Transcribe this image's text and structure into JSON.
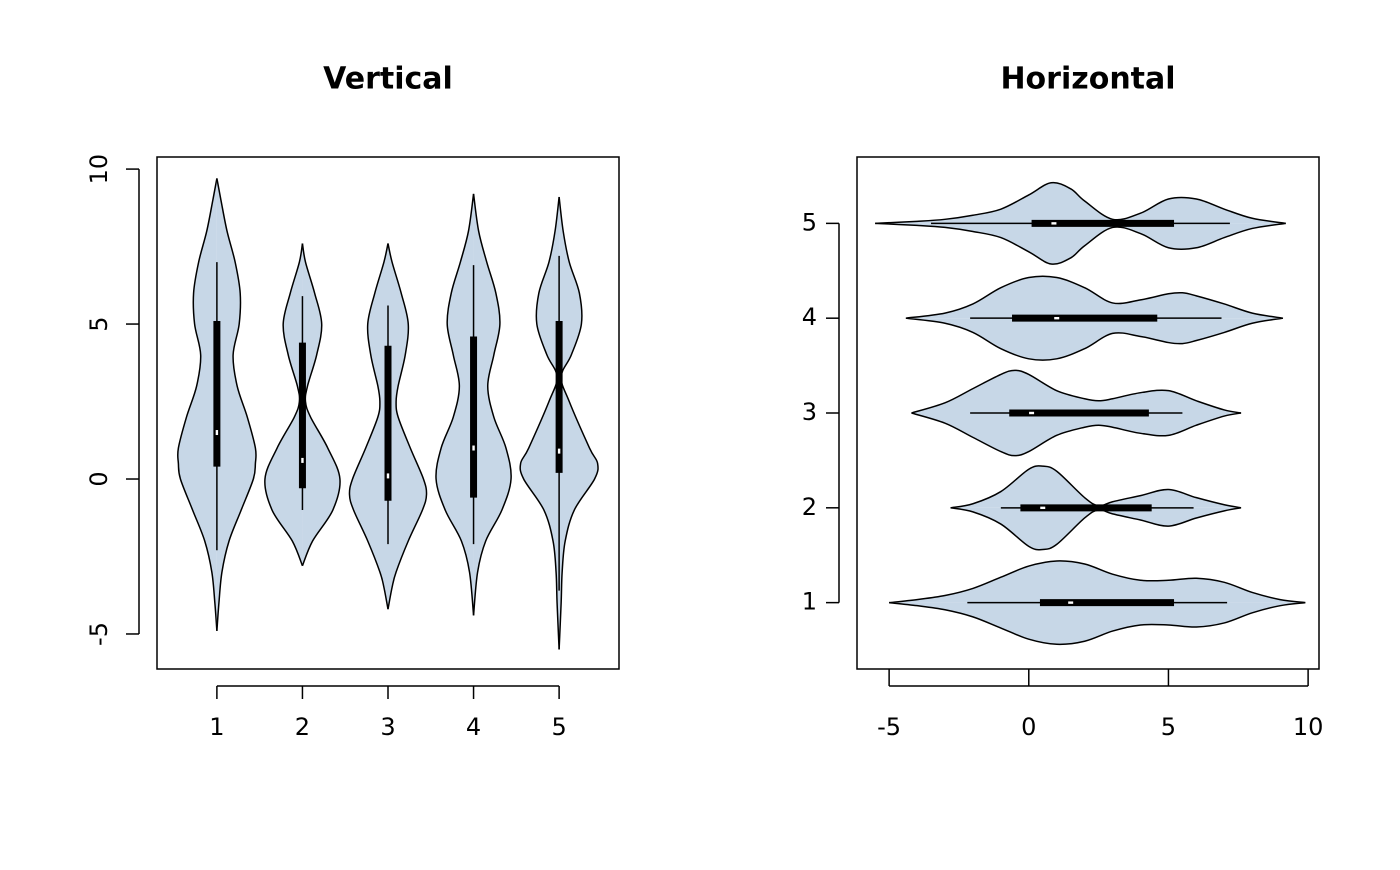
{
  "chart_data": [
    {
      "type": "violin",
      "horizontal": false,
      "title": "Vertical",
      "categories": [
        "1",
        "2",
        "3",
        "4",
        "5"
      ],
      "ylim": [
        -6.13,
        10.39
      ],
      "yticks": [
        -5,
        0,
        5,
        10
      ],
      "color": "#c7d7e7",
      "violins": [
        {
          "whisker_low": -2.3,
          "q1": 0.4,
          "median": 1.5,
          "q3": 5.1,
          "whisker_high": 7.0,
          "density_at": [
            -4.9,
            -4,
            -3,
            -2,
            -1,
            0,
            0.5,
            1,
            2,
            3,
            4,
            5,
            6,
            7,
            8,
            9,
            9.7
          ],
          "density": [
            0,
            2,
            5,
            12,
            24,
            36,
            38,
            38,
            30,
            20,
            16,
            22,
            23,
            18,
            10,
            4,
            0
          ]
        },
        {
          "whisker_low": -1.0,
          "q1": -0.3,
          "median": 0.6,
          "q3": 4.4,
          "whisker_high": 5.9,
          "density_at": [
            -2.8,
            -2,
            -1,
            0,
            1,
            2,
            2.5,
            3,
            4,
            5,
            6,
            7,
            7.6
          ],
          "density": [
            0,
            10,
            30,
            37,
            25,
            8,
            3,
            5,
            14,
            19,
            12,
            3,
            0
          ]
        },
        {
          "whisker_low": -2.1,
          "q1": -0.7,
          "median": 0.1,
          "q3": 4.3,
          "whisker_high": 5.6,
          "density_at": [
            -4.2,
            -3.5,
            -3,
            -2,
            -1,
            -0.5,
            0,
            1,
            2,
            2.5,
            3,
            4,
            5,
            6,
            7,
            7.6
          ],
          "density": [
            0,
            4,
            8,
            20,
            34,
            38,
            35,
            22,
            10,
            8,
            10,
            17,
            20,
            13,
            4,
            0
          ]
        },
        {
          "whisker_low": -2.1,
          "q1": -0.6,
          "median": 1.0,
          "q3": 4.6,
          "whisker_high": 6.9,
          "density_at": [
            -4.4,
            -3,
            -2,
            -1,
            0,
            1,
            2,
            3,
            4,
            5,
            6,
            7,
            8,
            9.2
          ],
          "density": [
            0,
            4,
            12,
            28,
            37,
            32,
            20,
            14,
            20,
            26,
            22,
            13,
            5,
            0
          ]
        },
        {
          "whisker_low": -3.6,
          "q1": 0.2,
          "median": 0.9,
          "q3": 5.1,
          "whisker_high": 7.2,
          "density_at": [
            -5.5,
            -4,
            -3,
            -2,
            -1,
            0,
            0.5,
            1,
            2.5,
            3.3,
            4,
            5,
            6,
            7,
            8,
            9.1
          ],
          "density": [
            0,
            2,
            3,
            6,
            15,
            35,
            38,
            30,
            10,
            2,
            12,
            22,
            20,
            10,
            4,
            0
          ]
        }
      ]
    },
    {
      "type": "violin",
      "horizontal": true,
      "title": "Horizontal",
      "categories": [
        "1",
        "2",
        "3",
        "4",
        "5"
      ],
      "xlim": [
        -6.15,
        10.39
      ],
      "xticks": [
        -5,
        0,
        5,
        10
      ],
      "color": "#c7d7e7",
      "violins": [
        {
          "whisker_low": -2.2,
          "q1": 0.4,
          "median": 1.5,
          "q3": 5.2,
          "whisker_high": 7.1,
          "density_at": [
            -5,
            -4,
            -3,
            -2,
            -1,
            0,
            1,
            2,
            3,
            4,
            5,
            6,
            7,
            8,
            9,
            9.9
          ],
          "density": [
            0,
            3,
            7,
            14,
            25,
            36,
            41,
            38,
            28,
            22,
            22,
            24,
            20,
            10,
            3,
            0
          ]
        },
        {
          "whisker_low": -1.0,
          "q1": -0.3,
          "median": 0.5,
          "q3": 4.4,
          "whisker_high": 5.9,
          "density_at": [
            -2.8,
            -2,
            -1,
            0,
            0.5,
            1,
            2,
            2.5,
            3,
            4,
            5,
            6,
            7,
            7.6
          ],
          "density": [
            0,
            4,
            16,
            38,
            41,
            36,
            10,
            2,
            6,
            12,
            18,
            10,
            3,
            0
          ]
        },
        {
          "whisker_low": -2.1,
          "q1": -0.7,
          "median": 0.1,
          "q3": 4.3,
          "whisker_high": 5.5,
          "density_at": [
            -4.2,
            -3,
            -2,
            -1,
            -0.5,
            0,
            1,
            2,
            2.5,
            3,
            4,
            5,
            6,
            7,
            7.6
          ],
          "density": [
            0,
            10,
            24,
            38,
            42,
            38,
            22,
            14,
            12,
            14,
            20,
            22,
            12,
            3,
            0
          ]
        },
        {
          "whisker_low": -2.1,
          "q1": -0.6,
          "median": 1.0,
          "q3": 4.6,
          "whisker_high": 6.9,
          "density_at": [
            -4.4,
            -3,
            -2,
            -1,
            0,
            1,
            2,
            3,
            4,
            5,
            5.5,
            6,
            7,
            8,
            9.1
          ],
          "density": [
            0,
            5,
            14,
            30,
            40,
            40,
            30,
            15,
            18,
            24,
            25,
            22,
            14,
            5,
            0
          ]
        },
        {
          "whisker_low": -3.5,
          "q1": 0.1,
          "median": 0.9,
          "q3": 5.2,
          "whisker_high": 7.2,
          "density_at": [
            -5.5,
            -4,
            -3,
            -2,
            -1,
            0,
            0.8,
            1.5,
            2,
            3,
            4,
            5,
            6,
            7,
            8,
            9.2
          ],
          "density": [
            0,
            2,
            4,
            8,
            14,
            28,
            40,
            34,
            22,
            4,
            10,
            24,
            24,
            14,
            5,
            0
          ]
        }
      ]
    }
  ]
}
